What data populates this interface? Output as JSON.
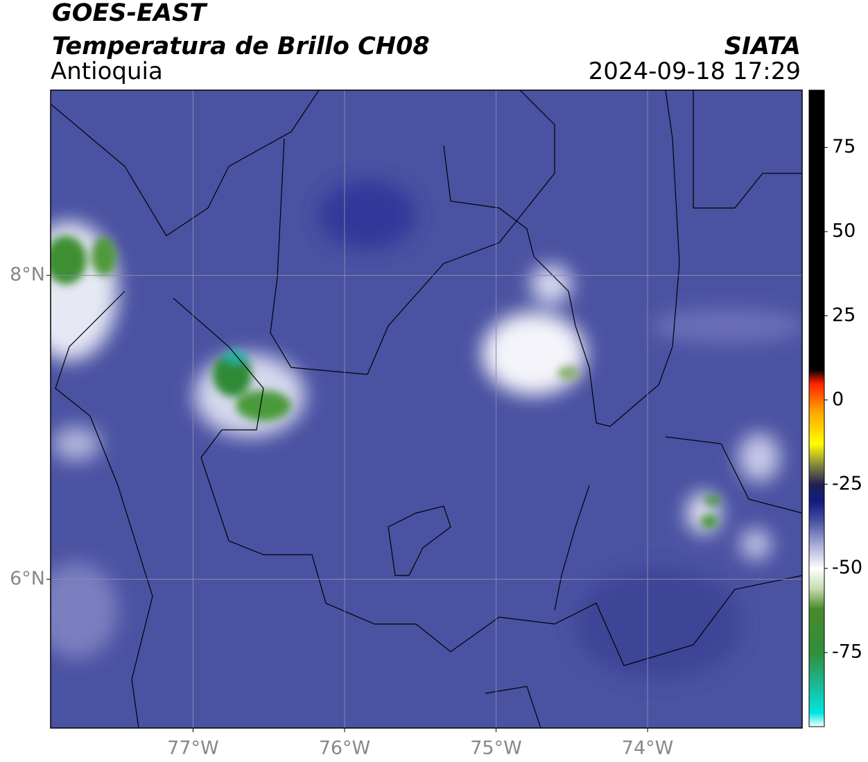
{
  "header": {
    "title": "GOES-EAST",
    "subtitle": "Temperatura de Brillo CH08",
    "region": "Antioquia",
    "source": "SIATA",
    "datetime": "2024-09-18 17:29"
  },
  "map": {
    "xlim": [
      -77.94,
      -72.98
    ],
    "ylim": [
      5.02,
      9.22
    ],
    "xticks": [
      {
        "value": -77,
        "label": "77°W"
      },
      {
        "value": -76,
        "label": "76°W"
      },
      {
        "value": -75,
        "label": "75°W"
      },
      {
        "value": -74,
        "label": "74°W"
      }
    ],
    "yticks": [
      {
        "value": 6,
        "label": "6°N"
      },
      {
        "value": 8,
        "label": "8°N"
      }
    ],
    "grid": true,
    "background": "#4a52a2"
  },
  "colorbar": {
    "lim": [
      -97,
      92
    ],
    "ticks": [
      -75,
      -50,
      -25,
      0,
      25,
      50,
      75
    ],
    "stops": [
      {
        "value": -97,
        "color": "#ffffff"
      },
      {
        "value": -93,
        "color": "#00e8e0"
      },
      {
        "value": -85,
        "color": "#1aba9a"
      },
      {
        "value": -75,
        "color": "#2f8f3a"
      },
      {
        "value": -62,
        "color": "#4a8a2a"
      },
      {
        "value": -56,
        "color": "#c6dcb0"
      },
      {
        "value": -50,
        "color": "#ffffff"
      },
      {
        "value": -43,
        "color": "#a8acd6"
      },
      {
        "value": -36,
        "color": "#4a52a2"
      },
      {
        "value": -30,
        "color": "#101a80"
      },
      {
        "value": -25,
        "color": "#202050"
      },
      {
        "value": -19,
        "color": "#8a8a40"
      },
      {
        "value": -13,
        "color": "#ffff00"
      },
      {
        "value": -3,
        "color": "#ffa000"
      },
      {
        "value": 5,
        "color": "#ff2000"
      },
      {
        "value": 9,
        "color": "#000000"
      },
      {
        "value": 92,
        "color": "#000000"
      }
    ]
  }
}
